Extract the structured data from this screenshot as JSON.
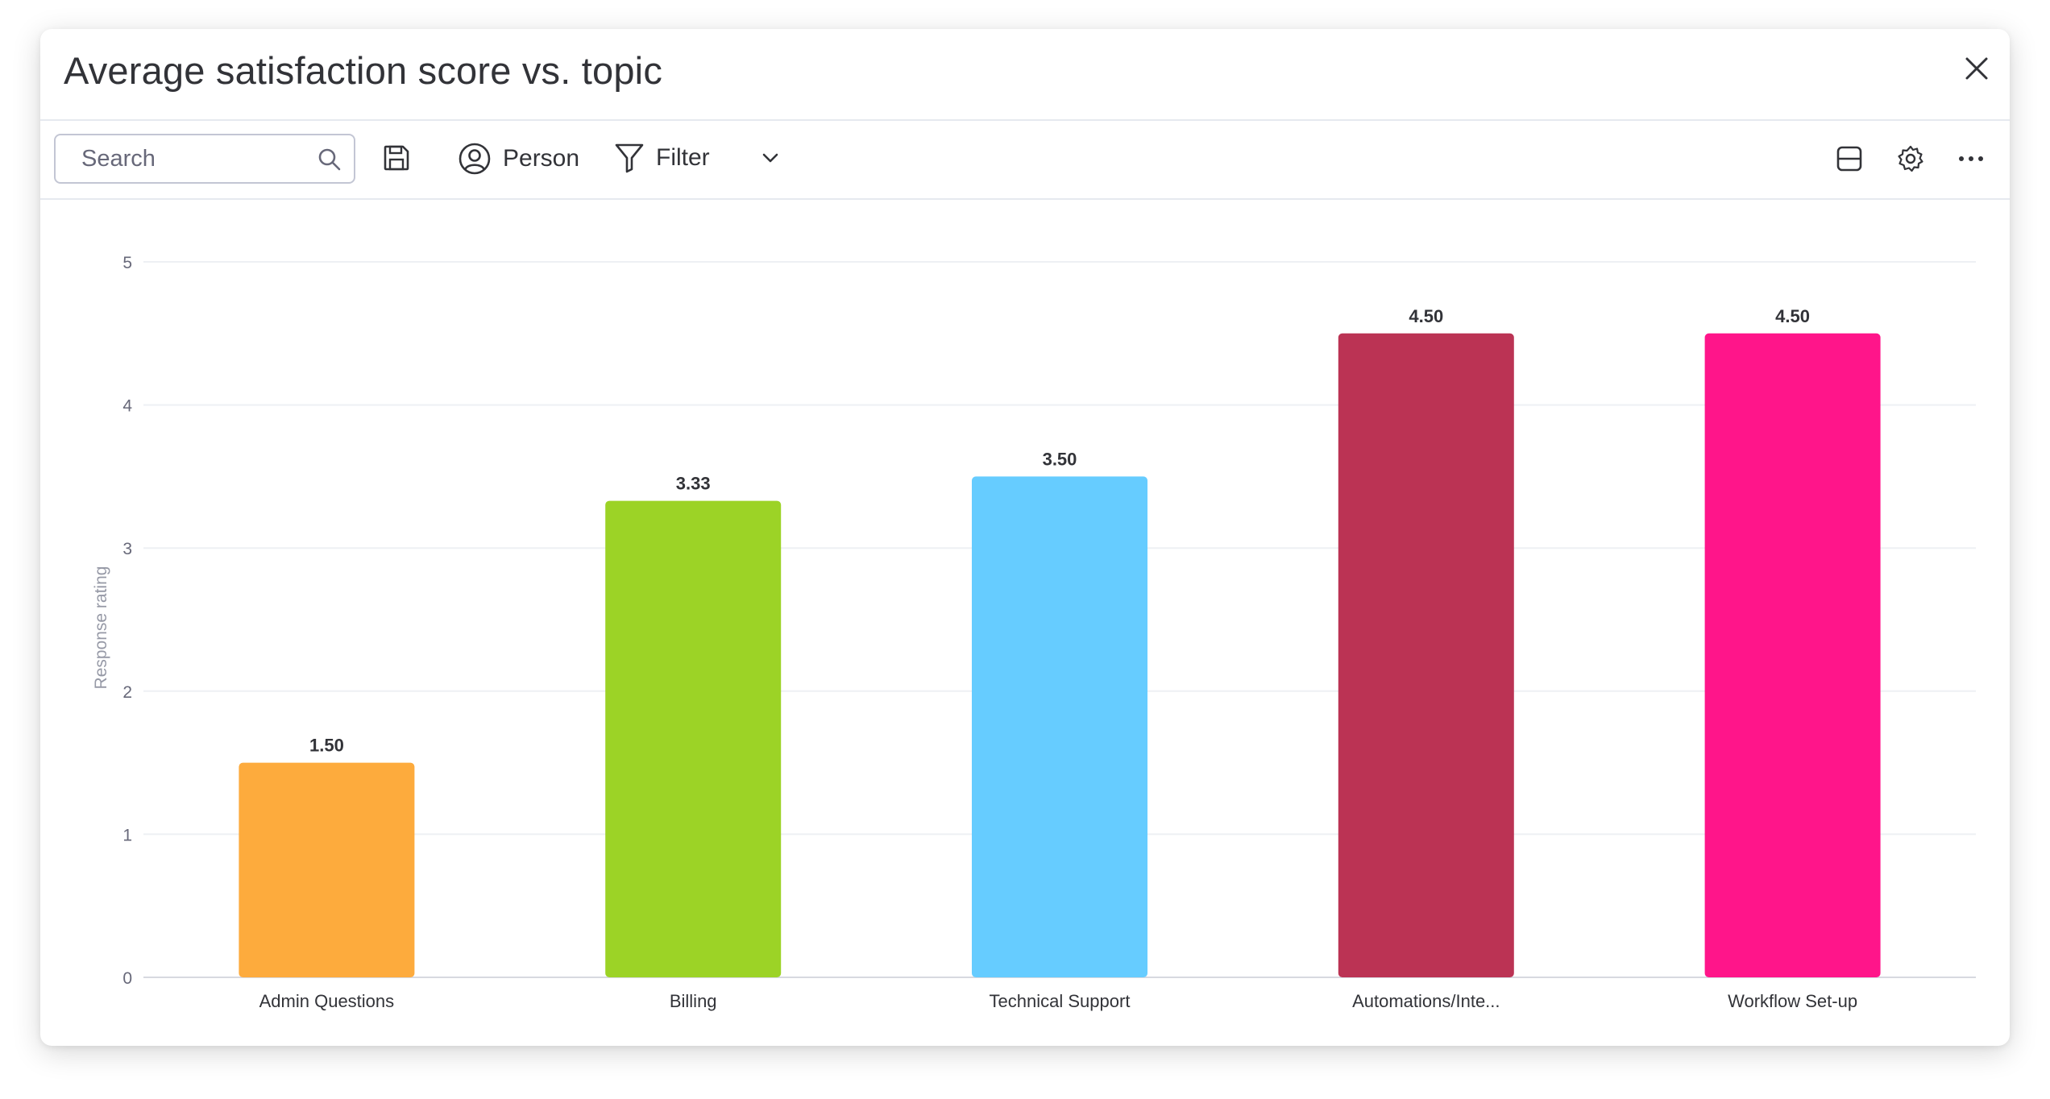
{
  "header": {
    "title": "Average satisfaction score vs. topic"
  },
  "toolbar": {
    "search_placeholder": "Search",
    "person_label": "Person",
    "filter_label": "Filter"
  },
  "chart_data": {
    "type": "bar",
    "title": "Average satisfaction score vs. topic",
    "xlabel": "",
    "ylabel": "Response rating",
    "ylim": [
      0,
      5
    ],
    "yticks": [
      0,
      1,
      2,
      3,
      4,
      5
    ],
    "grid": true,
    "categories": [
      "Admin Questions",
      "Billing",
      "Technical Support",
      "Automations/Inte...",
      "Workflow Set-up"
    ],
    "values": [
      1.5,
      3.33,
      3.5,
      4.5,
      4.5
    ],
    "value_labels": [
      "1.50",
      "3.33",
      "3.50",
      "4.50",
      "4.50"
    ],
    "colors": [
      "#fdab3d",
      "#9cd326",
      "#66ccff",
      "#bb3354",
      "#ff158a"
    ]
  }
}
